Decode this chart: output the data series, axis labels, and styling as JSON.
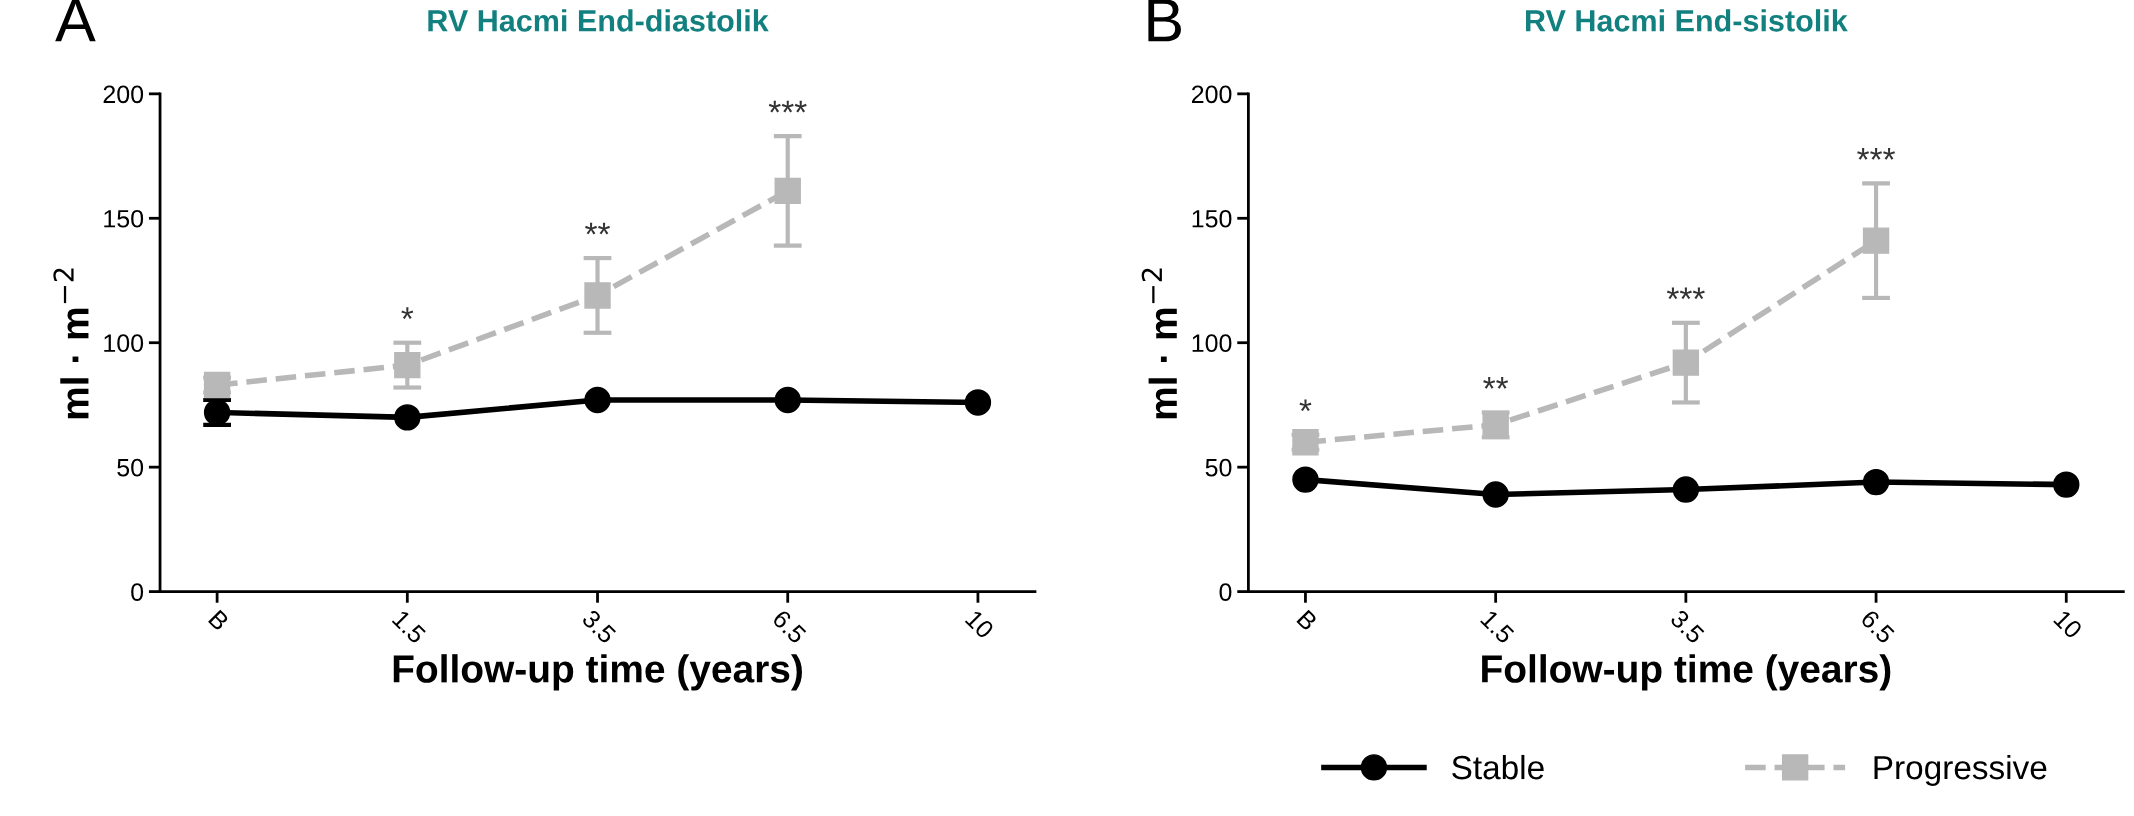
{
  "chart_data": [
    {
      "type": "line",
      "title": "RV Hacmi End-diastolik",
      "xlabel": "Follow-up time (years)",
      "ylabel": "ml · m$^{−2}$",
      "categories": [
        "B",
        "1.5",
        "3.5",
        "6.5",
        "10"
      ],
      "ylim": [
        0,
        200
      ],
      "yticks": [
        0,
        50,
        100,
        150,
        200
      ],
      "grid": false,
      "legend": "bottom",
      "series": [
        {
          "name": "Stable",
          "color": "#000000",
          "marker": "circle",
          "line_style": "solid",
          "values": [
            72,
            70,
            77,
            77,
            76
          ],
          "errors": [
            5,
            null,
            null,
            null,
            null
          ]
        },
        {
          "name": "Progressive",
          "color": "#b8b8b8",
          "marker": "square",
          "line_style": "dashed",
          "values": [
            83,
            91,
            119,
            161,
            null
          ],
          "errors": [
            3,
            9,
            15,
            22,
            null
          ],
          "value_labels": [
            null,
            "*",
            "**",
            "***",
            null
          ]
        }
      ],
      "annotations": [
        "A"
      ]
    },
    {
      "type": "line",
      "title": "RV Hacmi End-sistolik",
      "xlabel": "Follow-up time (years)",
      "ylabel": "ml · m$^{−2}$",
      "categories": [
        "B",
        "1.5",
        "3.5",
        "6.5",
        "10"
      ],
      "ylim": [
        0,
        200
      ],
      "yticks": [
        0,
        50,
        100,
        150,
        200
      ],
      "grid": false,
      "legend": "bottom",
      "series": [
        {
          "name": "Stable",
          "color": "#000000",
          "marker": "circle",
          "line_style": "solid",
          "values": [
            45,
            39,
            41,
            44,
            43
          ]
        },
        {
          "name": "Progressive",
          "color": "#b8b8b8",
          "marker": "square",
          "line_style": "dashed",
          "values": [
            60,
            67,
            92,
            141,
            null
          ],
          "errors": [
            3,
            5,
            16,
            23,
            null
          ],
          "value_labels": [
            "*",
            "**",
            "***",
            "***",
            null
          ]
        }
      ],
      "annotations": [
        "B"
      ]
    }
  ]
}
